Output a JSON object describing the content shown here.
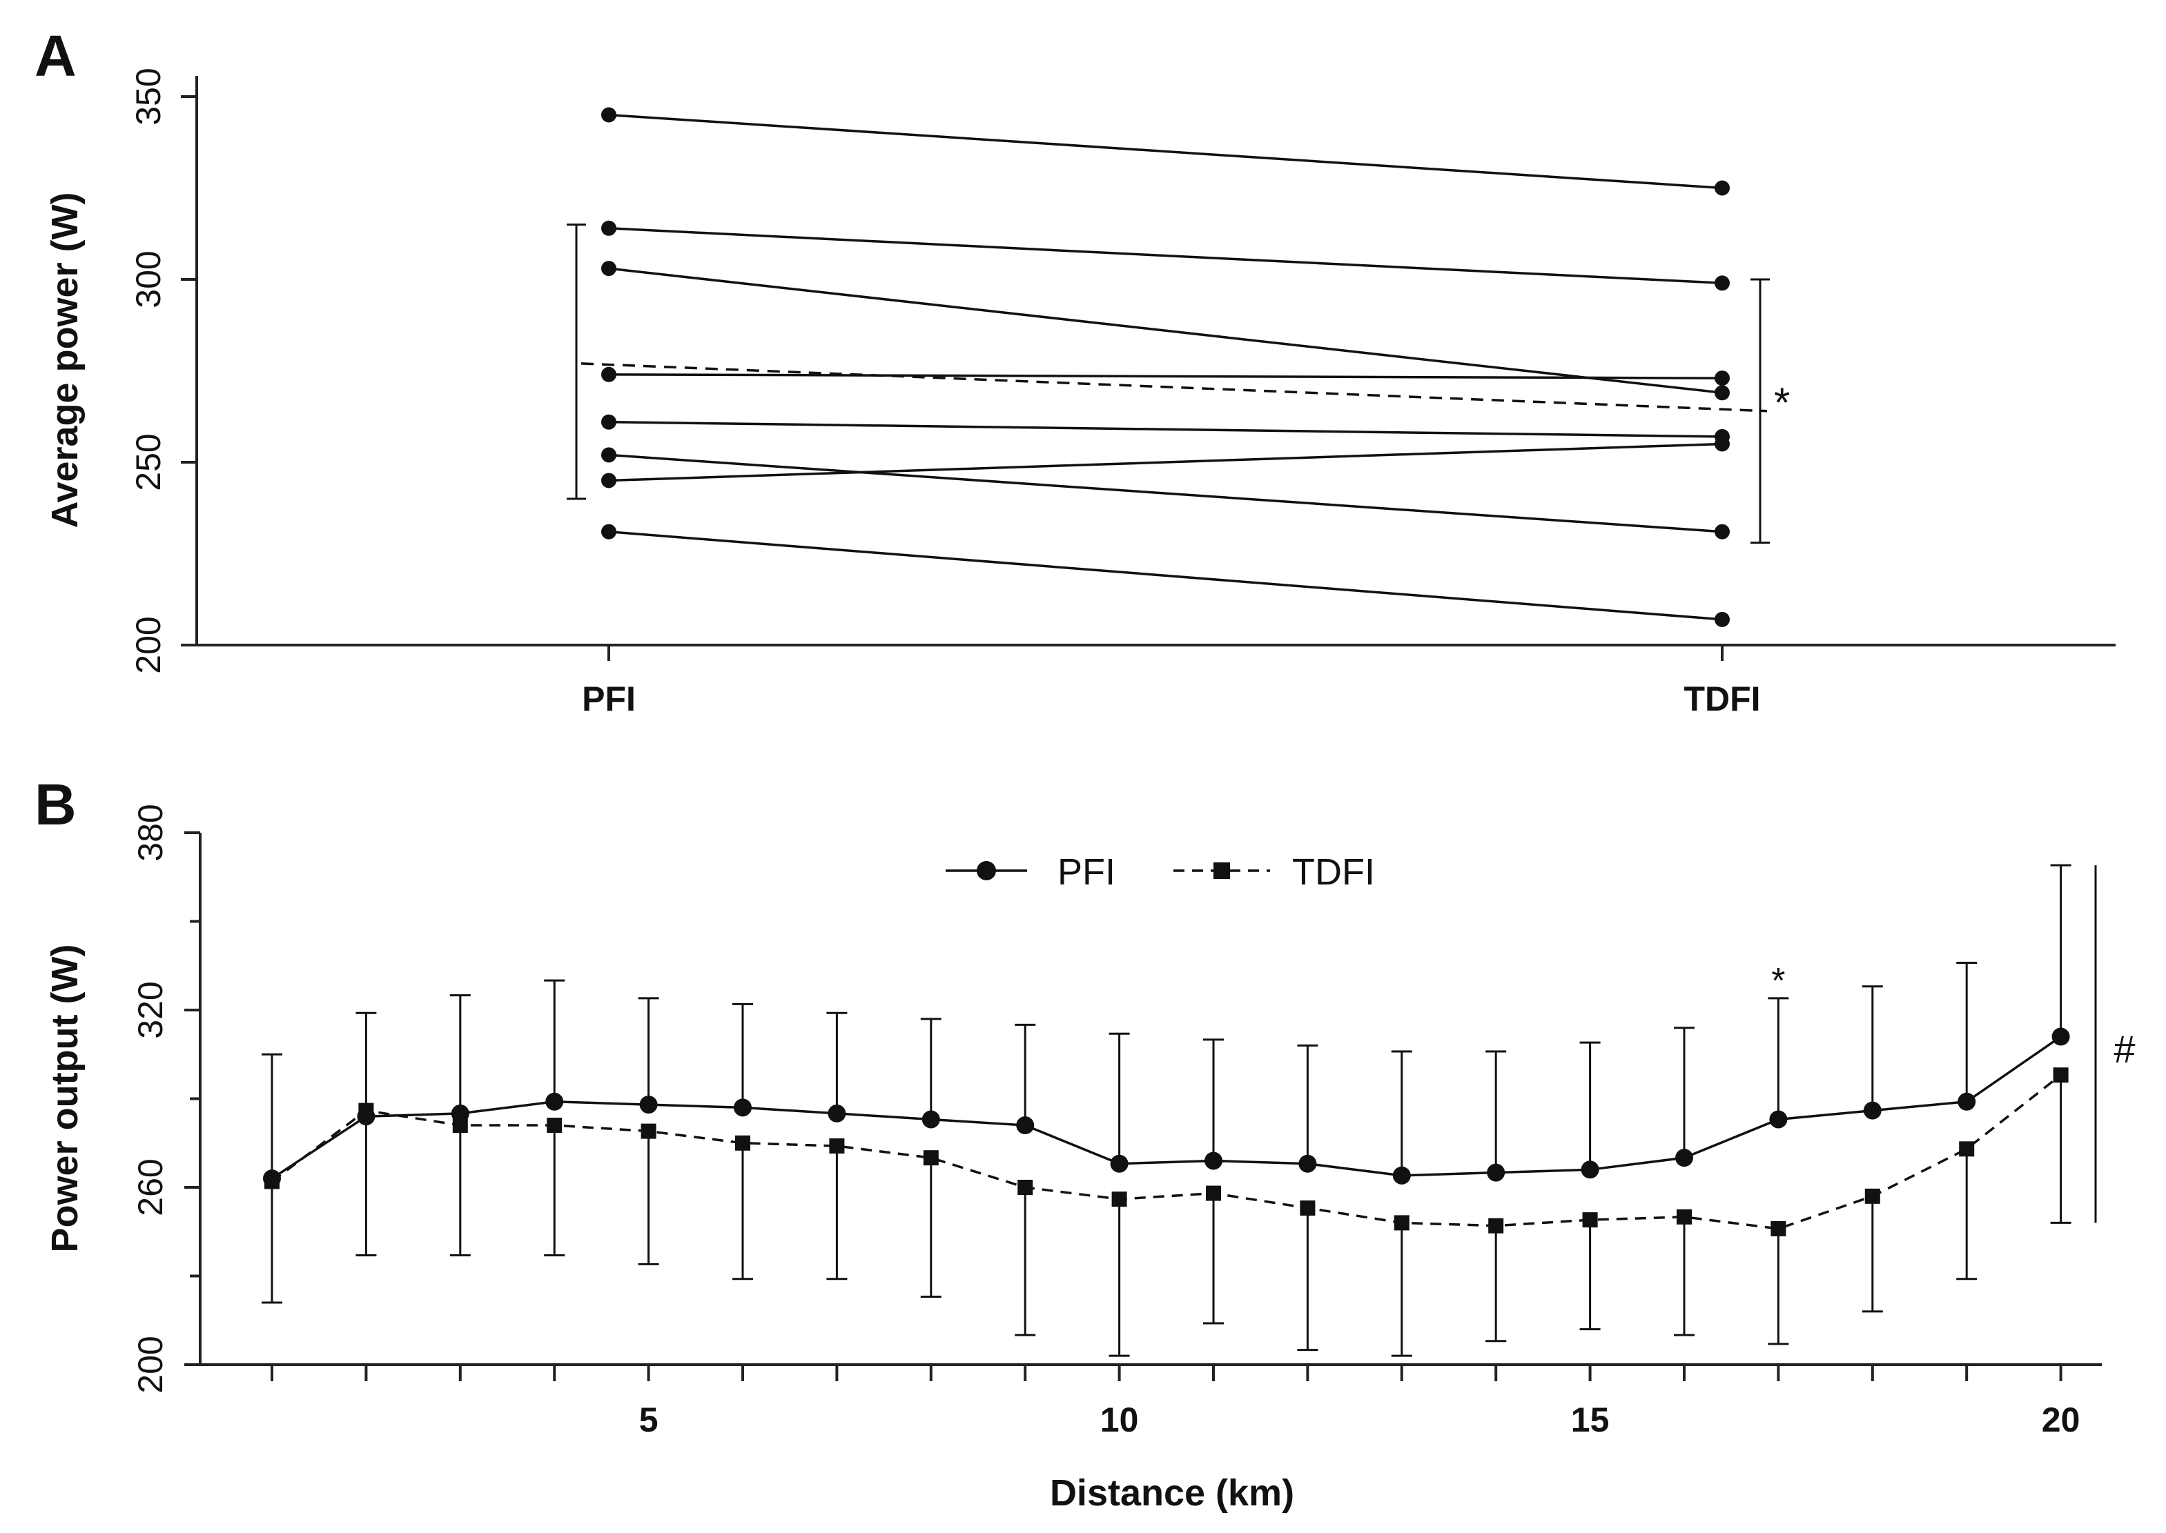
{
  "chart_data": [
    {
      "panel": "A",
      "type": "line",
      "categories": [
        "PFI",
        "TDFI"
      ],
      "ylabel": "Average power (W)",
      "ylim": [
        200,
        350
      ],
      "yticks": [
        200,
        250,
        300,
        350
      ],
      "subjects": [
        {
          "values": [
            345,
            325
          ]
        },
        {
          "values": [
            314,
            299
          ]
        },
        {
          "values": [
            303,
            269
          ]
        },
        {
          "values": [
            274,
            273
          ]
        },
        {
          "values": [
            261,
            257
          ]
        },
        {
          "values": [
            252,
            231
          ]
        },
        {
          "values": [
            245,
            255
          ]
        },
        {
          "values": [
            231,
            207
          ]
        }
      ],
      "mean": {
        "values": [
          277,
          264
        ],
        "sd_low": [
          240,
          228
        ],
        "sd_high": [
          315,
          300
        ]
      },
      "annotation": "*"
    },
    {
      "panel": "B",
      "type": "line",
      "xlabel": "Distance (km)",
      "ylabel": "Power output (W)",
      "xlim": [
        0.5,
        20.5
      ],
      "ylim": [
        200,
        380
      ],
      "xticks_minor": [
        1,
        2,
        3,
        4,
        5,
        6,
        7,
        8,
        9,
        10,
        11,
        12,
        13,
        14,
        15,
        16,
        17,
        18,
        19,
        20
      ],
      "xtick_labels": [
        5,
        10,
        15,
        20
      ],
      "yticks": [
        200,
        260,
        320,
        380
      ],
      "x": [
        1,
        2,
        3,
        4,
        5,
        6,
        7,
        8,
        9,
        10,
        11,
        12,
        13,
        14,
        15,
        16,
        17,
        18,
        19,
        20
      ],
      "series": [
        {
          "name": "PFI",
          "marker": "circle",
          "style": "solid",
          "values": [
            263,
            284,
            285,
            289,
            288,
            287,
            285,
            283,
            281,
            268,
            269,
            268,
            264,
            265,
            266,
            270,
            283,
            286,
            289,
            311
          ],
          "err_high": [
            305,
            319,
            325,
            330,
            324,
            322,
            319,
            317,
            315,
            312,
            310,
            308,
            306,
            306,
            309,
            314,
            324,
            328,
            336,
            369
          ]
        },
        {
          "name": "TDFI",
          "marker": "square",
          "style": "dashed",
          "values": [
            262,
            286,
            281,
            281,
            279,
            275,
            274,
            270,
            260,
            256,
            258,
            253,
            248,
            247,
            249,
            250,
            246,
            257,
            273,
            298
          ],
          "err_low": [
            221,
            237,
            237,
            237,
            234,
            229,
            229,
            223,
            210,
            203,
            214,
            205,
            203,
            208,
            212,
            210,
            207,
            218,
            229,
            248
          ]
        }
      ],
      "annotations": [
        {
          "text": "*",
          "x": 17
        },
        {
          "text": "#"
        }
      ],
      "legend": "top-center"
    }
  ]
}
